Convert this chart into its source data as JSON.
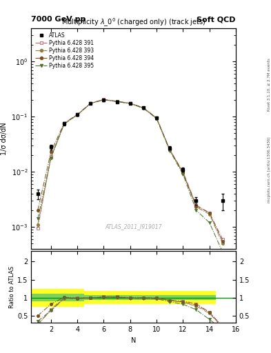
{
  "title_top_left": "7000 GeV pp",
  "title_top_right": "Soft QCD",
  "plot_title": "Multiplicity $\\lambda\\_0^0$ (charged only) (track jets)",
  "watermark": "ATLAS_2011_I919017",
  "right_label_top": "Rivet 3.1.10, ≥ 2.7M events",
  "right_label_bottom": "mcplots.cern.ch [arXiv:1306.3436]",
  "ylabel_main": "1/σ dσ/dN",
  "ylabel_ratio": "Ratio to ATLAS",
  "xlabel": "N",
  "xlim": [
    0.5,
    16
  ],
  "ylim_main_log": [
    0.0004,
    4
  ],
  "ylim_ratio": [
    0.3,
    2.3
  ],
  "atlas_N": [
    1,
    2,
    3,
    4,
    5,
    6,
    7,
    8,
    9,
    10,
    11,
    12,
    13,
    15
  ],
  "atlas_y": [
    0.004,
    0.028,
    0.075,
    0.11,
    0.175,
    0.2,
    0.185,
    0.175,
    0.145,
    0.095,
    0.027,
    0.011,
    0.003,
    0.003
  ],
  "atlas_yerr": [
    0.0008,
    0.003,
    0.005,
    0.006,
    0.008,
    0.009,
    0.008,
    0.008,
    0.007,
    0.005,
    0.002,
    0.001,
    0.0005,
    0.001
  ],
  "py391_N": [
    1,
    2,
    3,
    4,
    5,
    6,
    7,
    8,
    9,
    10,
    11,
    12,
    13,
    14,
    15
  ],
  "py391_y": [
    0.00095,
    0.019,
    0.075,
    0.11,
    0.175,
    0.205,
    0.19,
    0.175,
    0.145,
    0.095,
    0.025,
    0.01,
    0.0025,
    0.0018,
    0.0006
  ],
  "py393_N": [
    1,
    2,
    3,
    4,
    5,
    6,
    7,
    8,
    9,
    10,
    11,
    12,
    13,
    14,
    15
  ],
  "py393_y": [
    0.0011,
    0.018,
    0.073,
    0.107,
    0.173,
    0.203,
    0.188,
    0.173,
    0.143,
    0.093,
    0.025,
    0.0095,
    0.0023,
    0.0017,
    0.0005
  ],
  "py394_N": [
    1,
    2,
    3,
    4,
    5,
    6,
    7,
    8,
    9,
    10,
    11,
    12,
    13,
    14,
    15
  ],
  "py394_y": [
    0.002,
    0.023,
    0.076,
    0.108,
    0.174,
    0.203,
    0.188,
    0.174,
    0.144,
    0.094,
    0.025,
    0.0097,
    0.0024,
    0.0018,
    0.00055
  ],
  "py395_N": [
    1,
    2,
    3,
    4,
    5,
    6,
    7,
    8,
    9,
    10,
    11,
    12,
    13,
    14,
    15
  ],
  "py395_y": [
    0.0014,
    0.018,
    0.074,
    0.108,
    0.173,
    0.202,
    0.187,
    0.172,
    0.142,
    0.092,
    0.024,
    0.009,
    0.002,
    0.0012,
    0.00035
  ],
  "ratio391": [
    0.24,
    0.68,
    1.0,
    1.0,
    1.0,
    1.025,
    1.027,
    1.0,
    1.0,
    1.0,
    0.926,
    0.909,
    0.833,
    0.6,
    0.2
  ],
  "ratio393": [
    0.275,
    0.643,
    0.973,
    0.973,
    0.989,
    1.015,
    1.016,
    0.989,
    0.986,
    0.979,
    0.926,
    0.864,
    0.767,
    0.567,
    0.167
  ],
  "ratio394": [
    0.5,
    0.821,
    1.013,
    0.982,
    0.994,
    1.015,
    1.016,
    0.994,
    0.993,
    0.989,
    0.926,
    0.882,
    0.8,
    0.6,
    0.183
  ],
  "ratio395": [
    0.35,
    0.643,
    0.987,
    0.982,
    0.989,
    1.01,
    1.011,
    0.983,
    0.979,
    0.968,
    0.889,
    0.818,
    0.667,
    0.4,
    0.117
  ],
  "band_yellow_lo": [
    0.75,
    0.75,
    0.75,
    0.75,
    0.82,
    0.82,
    0.82,
    0.82,
    0.82,
    0.82,
    0.82,
    0.82,
    0.82,
    0.82,
    0.82
  ],
  "band_yellow_hi": [
    1.25,
    1.25,
    1.25,
    1.25,
    1.18,
    1.18,
    1.18,
    1.18,
    1.18,
    1.18,
    1.18,
    1.18,
    1.18,
    1.18,
    1.18
  ],
  "band_green_lo": [
    0.9,
    0.9,
    0.9,
    0.9,
    0.93,
    0.93,
    0.93,
    0.93,
    0.93,
    0.93,
    0.93,
    0.93,
    0.93,
    0.93,
    0.93
  ],
  "band_green_hi": [
    1.1,
    1.1,
    1.1,
    1.1,
    1.07,
    1.07,
    1.07,
    1.07,
    1.07,
    1.07,
    1.07,
    1.07,
    1.07,
    1.07,
    1.07
  ],
  "band_N": [
    1,
    2,
    3,
    4,
    5,
    6,
    7,
    8,
    9,
    10,
    11,
    12,
    13,
    14,
    15
  ],
  "color_py391": "#b06070",
  "color_py393": "#908040",
  "color_py394": "#7b5020",
  "color_py395": "#507030",
  "atlas_color": "#000000"
}
